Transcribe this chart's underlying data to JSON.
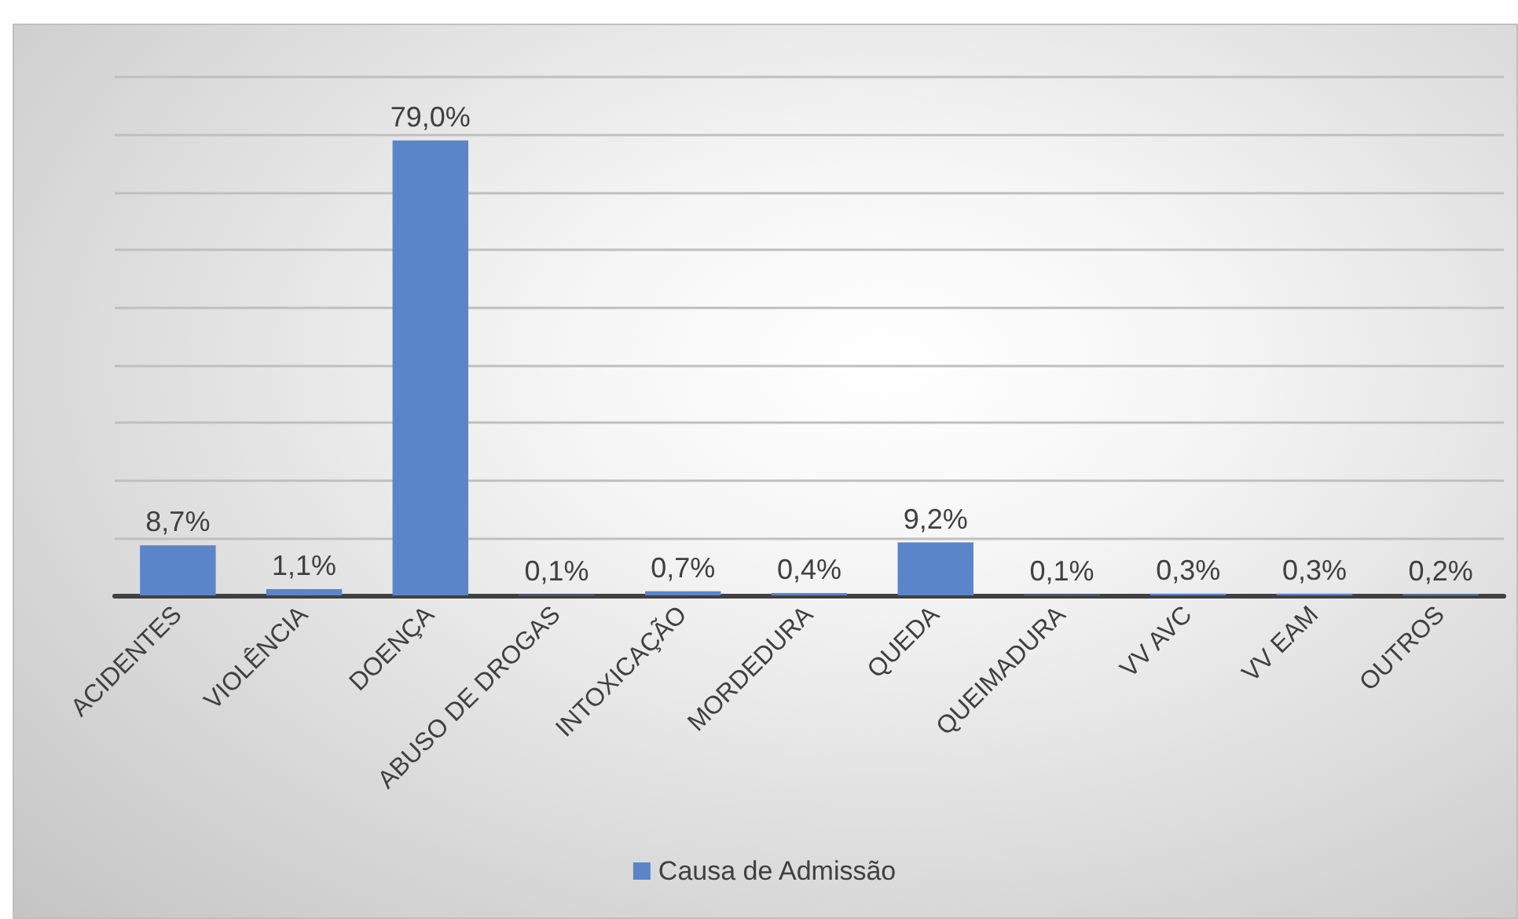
{
  "chart_data": {
    "type": "bar",
    "categories": [
      "ACIDENTES",
      "VIOLÊNCIA",
      "DOENÇA",
      "ABUSO DE DROGAS",
      "INTOXICAÇÃO",
      "MORDEDURA",
      "QUEDA",
      "QUEIMADURA",
      "VV AVC",
      "VV EAM",
      "OUTROS"
    ],
    "series": [
      {
        "name": "Causa de Admissão",
        "color": "#5b85c9",
        "values": [
          8.7,
          1.1,
          79.0,
          0.1,
          0.7,
          0.4,
          9.2,
          0.1,
          0.3,
          0.3,
          0.2
        ],
        "value_labels": [
          "8,7%",
          "1,1%",
          "79,0%",
          "0,1%",
          "0,7%",
          "0,4%",
          "9,2%",
          "0,1%",
          "0,3%",
          "0,3%",
          "0,2%"
        ]
      }
    ],
    "ylim": [
      0,
      90
    ],
    "yticks": [
      {
        "value": 0,
        "label": null
      },
      {
        "value": 10,
        "label": null
      },
      {
        "value": 20,
        "label": null
      },
      {
        "value": 30,
        "label": null
      },
      {
        "value": 40,
        "label": null
      },
      {
        "value": 50,
        "label": null
      },
      {
        "value": 60,
        "label": null
      },
      {
        "value": 70,
        "label": null
      },
      {
        "value": 80,
        "label": null
      },
      {
        "value": 90,
        "label": null
      }
    ],
    "grid": "y",
    "legend": "bottom",
    "tick_labels": "x"
  }
}
